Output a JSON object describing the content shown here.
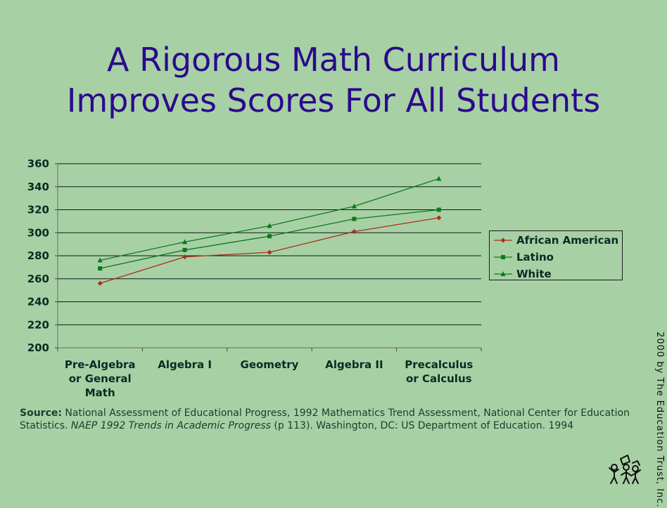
{
  "title_line1": "A Rigorous Math Curriculum",
  "title_line2": "Improves Scores For All Students",
  "chart_data": {
    "type": "line",
    "categories": [
      "Pre-Algebra or General Math",
      "Algebra I",
      "Geometry",
      "Algebra II",
      "Precalculus or Calculus"
    ],
    "category_lines": [
      [
        "Pre-Algebra",
        "or General",
        "Math"
      ],
      [
        "Algebra I"
      ],
      [
        "Geometry"
      ],
      [
        "Algebra II"
      ],
      [
        "Precalculus",
        "or Calculus"
      ]
    ],
    "ylim": [
      200,
      360
    ],
    "yticks": [
      "360",
      "340",
      "320",
      "300",
      "280",
      "260",
      "240",
      "220",
      "200"
    ],
    "grid": true,
    "legend_position": "right",
    "series": [
      {
        "name": "African American",
        "values": [
          256,
          279,
          283,
          301,
          313
        ],
        "color": "#a8301a",
        "marker": "diamond"
      },
      {
        "name": "Latino",
        "values": [
          269,
          285,
          297,
          312,
          320
        ],
        "color": "#0b7a1c",
        "marker": "square"
      },
      {
        "name": "White",
        "values": [
          276,
          292,
          306,
          323,
          347
        ],
        "color": "#0b7a1c",
        "marker": "triangle"
      }
    ]
  },
  "source": {
    "label": "Source:",
    "text1": " National Assessment of Educational Progress, 1992 Mathematics Trend Assessment, National Center for Education Statistics. ",
    "italic": "NAEP 1992 Trends in Academic Progress",
    "text2": "  (p 113). Washington, DC: US Department of Education. 1994"
  },
  "credit": "2000 by The Education Trust, Inc."
}
